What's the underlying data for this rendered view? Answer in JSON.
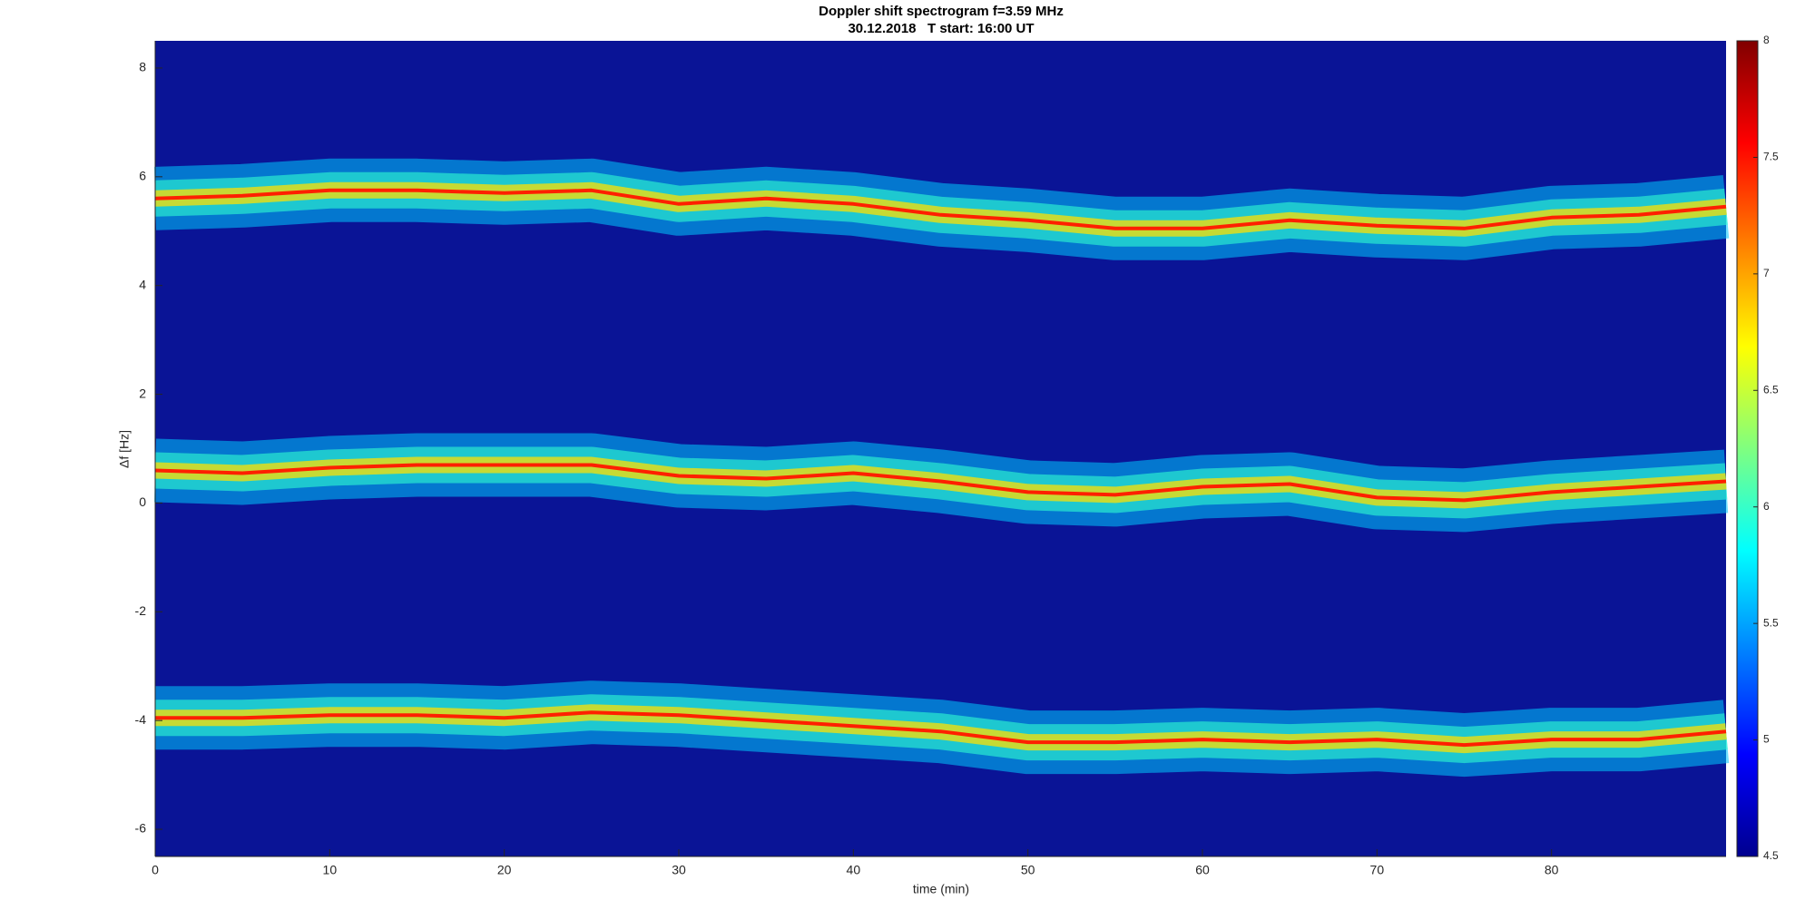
{
  "chart_data": {
    "type": "spectrogram",
    "title": "Doppler shift spectrogram f=3.59 MHz",
    "subtitle": "30.12.2018   T start: 16:00 UT",
    "x_label": "time (min)",
    "y_label": "Δf [Hz]",
    "x": [
      0,
      5,
      10,
      15,
      20,
      25,
      30,
      35,
      40,
      45,
      50,
      55,
      60,
      65,
      70,
      75,
      80,
      85,
      90
    ],
    "series": [
      {
        "color": "#ff2000",
        "values": [
          5.6,
          5.65,
          5.75,
          5.75,
          5.7,
          5.75,
          5.5,
          5.6,
          5.5,
          5.3,
          5.2,
          5.05,
          5.05,
          5.2,
          5.1,
          5.05,
          5.25,
          5.3,
          5.45
        ]
      },
      {
        "color": "#ff2000",
        "values": [
          0.6,
          0.55,
          0.65,
          0.7,
          0.7,
          0.7,
          0.5,
          0.45,
          0.55,
          0.4,
          0.2,
          0.15,
          0.3,
          0.35,
          0.1,
          0.05,
          0.2,
          0.3,
          0.4
        ]
      },
      {
        "color": "#ff2000",
        "values": [
          -3.95,
          -3.95,
          -3.9,
          -3.9,
          -3.95,
          -3.85,
          -3.9,
          -4.0,
          -4.1,
          -4.2,
          -4.4,
          -4.4,
          -4.35,
          -4.4,
          -4.35,
          -4.45,
          -4.35,
          -4.35,
          -4.2
        ]
      }
    ],
    "background": "#0a1496",
    "xlim": [
      0,
      90
    ],
    "xticks": [
      0,
      10,
      20,
      30,
      40,
      50,
      60,
      70,
      80
    ],
    "ylim": [
      -6.5,
      8.5
    ],
    "yticks": [
      -6,
      -4,
      -2,
      0,
      2,
      4,
      6,
      8
    ],
    "clim": [
      4.5,
      8
    ],
    "cticks": [
      4.5,
      5,
      5.5,
      6,
      6.5,
      7,
      7.5,
      8
    ]
  }
}
